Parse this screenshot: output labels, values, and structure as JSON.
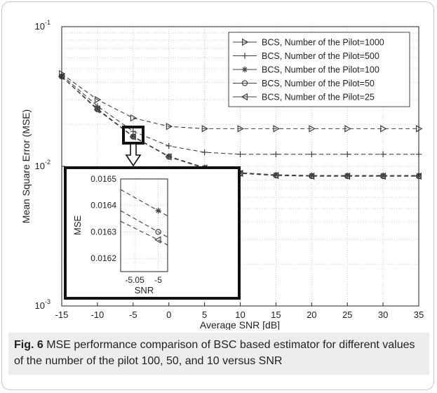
{
  "chart_data": {
    "type": "line",
    "xlabel": "Average SNR [dB]",
    "ylabel": "Mean Square Error (MSE)",
    "x": [
      -15,
      -10,
      -5,
      0,
      5,
      10,
      15,
      20,
      25,
      30,
      35
    ],
    "x_ticks": [
      "-15",
      "-10",
      "-5",
      "0",
      "5",
      "10",
      "15",
      "20",
      "25",
      "30",
      "35"
    ],
    "xlim": [
      -15,
      35
    ],
    "ylim": [
      0.001,
      0.1
    ],
    "yscale": "log",
    "y_ticks": [
      {
        "base": "10",
        "exp": "-3"
      },
      {
        "base": "10",
        "exp": "-2"
      },
      {
        "base": "10",
        "exp": "-1"
      }
    ],
    "grid": true,
    "legend_position": "top-right",
    "series": [
      {
        "name": "BCS, Number of the Pilot=1000",
        "marker": "triangle-right",
        "values": [
          0.046,
          0.03,
          0.0222,
          0.0193,
          0.0186,
          0.0186,
          0.0186,
          0.0186,
          0.0186,
          0.0186,
          0.0186
        ]
      },
      {
        "name": "BCS, Number of the Pilot=500",
        "marker": "plus",
        "values": [
          0.045,
          0.027,
          0.0178,
          0.014,
          0.0126,
          0.0122,
          0.0122,
          0.0122,
          0.0122,
          0.0122,
          0.0122
        ]
      },
      {
        "name": "BCS, Number of the Pilot=100",
        "marker": "asterisk",
        "values": [
          0.044,
          0.0258,
          0.0164,
          0.0118,
          0.0098,
          0.009,
          0.0087,
          0.0086,
          0.0086,
          0.0086,
          0.0086
        ]
      },
      {
        "name": "BCS, Number of the Pilot=50",
        "marker": "circle",
        "values": [
          0.044,
          0.0256,
          0.0163,
          0.0117,
          0.0097,
          0.0089,
          0.0086,
          0.0085,
          0.0085,
          0.0085,
          0.0085
        ]
      },
      {
        "name": "BCS, Number of the Pilot=25",
        "marker": "triangle-left",
        "values": [
          0.044,
          0.0254,
          0.0163,
          0.0117,
          0.0097,
          0.0089,
          0.0086,
          0.0085,
          0.0085,
          0.0085,
          0.0085
        ]
      }
    ],
    "inset": {
      "xlabel": "SNR",
      "ylabel": "MSE",
      "xlim": [
        -5.08,
        -4.98
      ],
      "ylim": [
        0.01615,
        0.0165
      ],
      "x_ticks": [
        {
          "value": -5.05,
          "label": "-5.05"
        },
        {
          "value": -5,
          "label": "-5"
        }
      ],
      "y_ticks": [
        {
          "value": 0.0162,
          "label": "0.0162"
        },
        {
          "value": 0.0163,
          "label": "0.0163"
        },
        {
          "value": 0.0164,
          "label": "0.0164"
        },
        {
          "value": 0.0165,
          "label": "0.0165"
        }
      ],
      "series": [
        {
          "marker": "asterisk",
          "points": [
            [
              -5.08,
              0.01646
            ],
            [
              -5.0,
              0.01638
            ],
            [
              -4.98,
              0.01636
            ]
          ]
        },
        {
          "marker": "circle",
          "points": [
            [
              -5.08,
              0.01638
            ],
            [
              -5.0,
              0.0163
            ],
            [
              -4.98,
              0.01628
            ]
          ]
        },
        {
          "marker": "triangle-left",
          "points": [
            [
              -5.08,
              0.01634
            ],
            [
              -5.0,
              0.01627
            ],
            [
              -4.98,
              0.01625
            ]
          ]
        }
      ]
    }
  },
  "caption": {
    "label": "Fig. 6",
    "text": " MSE performance comparison of BSC based estimator for different values of the number of the pilot 100, 50, and 10 versus SNR"
  },
  "colors": {
    "line": "#404040",
    "grid": "#c4c4c4",
    "axis": "#222222",
    "caption_bg": "#ededed"
  }
}
